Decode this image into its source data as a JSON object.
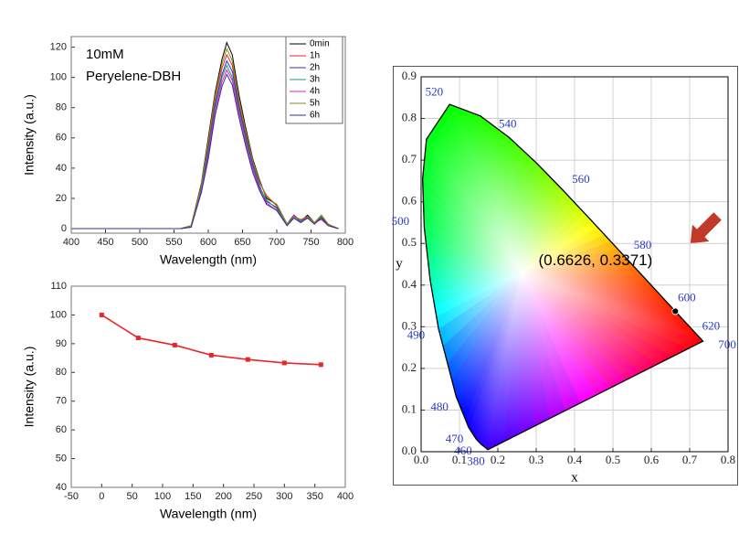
{
  "chart_data": [
    {
      "type": "line",
      "annotation_lines": [
        "10mM",
        "Peryelene-DBH"
      ],
      "xlabel": "Wavelength (nm)",
      "ylabel": "Intensity (a.u.)",
      "x": [
        400,
        560,
        575,
        590,
        600,
        610,
        620,
        627,
        635,
        645,
        655,
        665,
        675,
        685,
        700,
        715,
        725,
        735,
        745,
        755,
        765,
        775,
        790
      ],
      "series": [
        {
          "name": "0min",
          "color": "#000000",
          "values": [
            0,
            0,
            2,
            30,
            60,
            90,
            112,
            123,
            115,
            88,
            66,
            46,
            32,
            20,
            16,
            3,
            9,
            5,
            9,
            4,
            8,
            2,
            0
          ]
        },
        {
          "name": "1h",
          "color": "#e8262b",
          "values": [
            0,
            0,
            2,
            28,
            55,
            85,
            106,
            115,
            108,
            82,
            62,
            44,
            30,
            22,
            15,
            2,
            8,
            6,
            7,
            3,
            9,
            3,
            0
          ]
        },
        {
          "name": "2h",
          "color": "#2b2bd6",
          "values": [
            0,
            0,
            1,
            27,
            52,
            82,
            102,
            111,
            104,
            80,
            60,
            42,
            28,
            18,
            14,
            2,
            7,
            4,
            8,
            4,
            7,
            2,
            0
          ]
        },
        {
          "name": "3h",
          "color": "#1a9e6e",
          "values": [
            0,
            0,
            2,
            26,
            50,
            80,
            100,
            108,
            100,
            78,
            58,
            40,
            27,
            19,
            13,
            3,
            8,
            5,
            7,
            3,
            8,
            3,
            0
          ]
        },
        {
          "name": "4h",
          "color": "#e020c8",
          "values": [
            0,
            0,
            1,
            25,
            48,
            78,
            97,
            105,
            98,
            76,
            56,
            39,
            26,
            17,
            12,
            2,
            9,
            4,
            8,
            4,
            6,
            2,
            0
          ]
        },
        {
          "name": "5h",
          "color": "#8a8a10",
          "values": [
            0,
            0,
            2,
            29,
            58,
            88,
            109,
            119,
            111,
            85,
            64,
            45,
            31,
            21,
            16,
            3,
            8,
            6,
            8,
            4,
            9,
            3,
            0
          ]
        },
        {
          "name": "6h",
          "color": "#3a2a9a",
          "values": [
            0,
            0,
            1,
            24,
            46,
            75,
            94,
            102,
            95,
            73,
            54,
            37,
            25,
            16,
            12,
            2,
            7,
            4,
            7,
            3,
            7,
            2,
            0
          ]
        }
      ],
      "xlim": [
        400,
        800
      ],
      "xticks": [
        400,
        450,
        500,
        550,
        600,
        650,
        700,
        750,
        800
      ],
      "ylim": [
        -3,
        127
      ],
      "yticks": [
        0,
        20,
        40,
        60,
        80,
        100,
        120
      ]
    },
    {
      "type": "line",
      "marker": "square",
      "xlabel": "Wavelength (nm)",
      "ylabel": "Intensity (a.u.)",
      "x": [
        0,
        60,
        120,
        180,
        240,
        300,
        360
      ],
      "values": [
        100,
        92,
        89.5,
        86,
        84.5,
        83.3,
        82.7
      ],
      "color": "#e8262b",
      "xlim": [
        -50,
        400
      ],
      "xticks": [
        -50,
        0,
        50,
        100,
        150,
        200,
        250,
        300,
        350,
        400
      ],
      "ylim": [
        40,
        110
      ],
      "yticks": [
        40,
        50,
        60,
        70,
        80,
        90,
        100,
        110
      ]
    },
    {
      "type": "chromaticity",
      "xlabel": "x",
      "ylabel": "y",
      "locus_labels": [
        380,
        null,
        460,
        470,
        480,
        490,
        null,
        500,
        null,
        null,
        520,
        null,
        540,
        null,
        560,
        null,
        580,
        null,
        600,
        620,
        700
      ],
      "locus_x": [
        0.1741,
        0.1566,
        0.144,
        0.1241,
        0.0913,
        0.0454,
        0.0235,
        0.0082,
        0.0039,
        0.0139,
        0.0743,
        0.1547,
        0.2296,
        0.3016,
        0.3731,
        0.4441,
        0.5125,
        0.5752,
        0.627,
        0.6915,
        0.7347
      ],
      "locus_y": [
        0.005,
        0.0177,
        0.0297,
        0.0578,
        0.1327,
        0.295,
        0.4127,
        0.5384,
        0.6548,
        0.7502,
        0.8338,
        0.8059,
        0.7543,
        0.6923,
        0.6245,
        0.5547,
        0.4866,
        0.4242,
        0.3725,
        0.3083,
        0.2653
      ],
      "points": {
        "x": [
          0.6626
        ],
        "y": [
          0.3371
        ],
        "color": "#000000"
      },
      "annotation": "(0.6626, 0.3371)",
      "grid": true,
      "xlim": [
        0,
        0.8
      ],
      "xticks": [
        {
          "value": 0,
          "label": "0.0"
        },
        0.1,
        0.2,
        0.3,
        0.4,
        0.5,
        0.6,
        0.7,
        0.8
      ],
      "ylim": [
        0,
        0.9
      ],
      "yticks": [
        {
          "value": 0,
          "label": "0.0"
        },
        0.1,
        0.2,
        0.3,
        0.4,
        0.5,
        0.6,
        0.7,
        0.8,
        0.9
      ]
    }
  ]
}
